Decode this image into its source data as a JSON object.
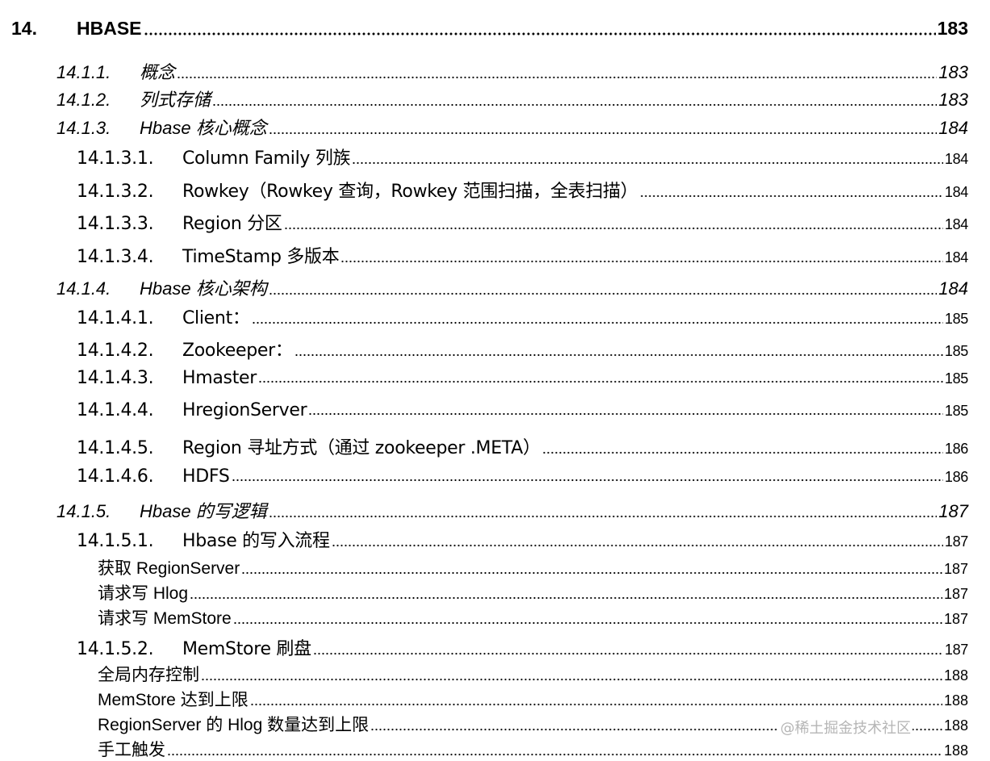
{
  "toc": [
    {
      "level": 1,
      "num": "14.",
      "title": "HBASE",
      "page": "183"
    },
    {
      "level": 2,
      "num": "14.1.1.",
      "title": "概念",
      "page": "183"
    },
    {
      "level": 2,
      "num": "14.1.2.",
      "title": "列式存储",
      "page": "183"
    },
    {
      "level": 2,
      "num": "14.1.3.",
      "title": "Hbase 核心概念",
      "page": "184"
    },
    {
      "level": 3,
      "num": "14.1.3.1.",
      "title": "Column Family 列族",
      "page": "184"
    },
    {
      "level": 3,
      "num": "14.1.3.2.",
      "title": "Rowkey（Rowkey 查询，Rowkey 范围扫描，全表扫描）",
      "page": "184"
    },
    {
      "level": 3,
      "num": "14.1.3.3.",
      "title": "Region 分区",
      "page": "184"
    },
    {
      "level": 3,
      "num": "14.1.3.4.",
      "title": "TimeStamp 多版本",
      "page": "184"
    },
    {
      "level": 2,
      "num": "14.1.4.",
      "title": "Hbase 核心架构",
      "page": "184"
    },
    {
      "level": 3,
      "num": "14.1.4.1.",
      "title": "Client：",
      "page": "185"
    },
    {
      "level": 3,
      "num": "14.1.4.2.",
      "title": "Zookeeper：",
      "page": "185"
    },
    {
      "level": 3,
      "num": "14.1.4.3.",
      "title": "Hmaster",
      "page": "185"
    },
    {
      "level": 3,
      "num": "14.1.4.4.",
      "title": "HregionServer",
      "page": "185"
    },
    {
      "level": 3,
      "num": "14.1.4.5.",
      "title": "Region 寻址方式（通过 zookeeper .META）",
      "page": "186"
    },
    {
      "level": 3,
      "num": "14.1.4.6.",
      "title": "HDFS",
      "page": "186"
    },
    {
      "level": 2,
      "num": "14.1.5.",
      "title": "Hbase 的写逻辑",
      "page": "187"
    },
    {
      "level": 3,
      "num": "14.1.5.1.",
      "title": "Hbase 的写入流程",
      "page": "187"
    },
    {
      "level": 4,
      "num": "",
      "title": "获取 RegionServer",
      "page": "187"
    },
    {
      "level": 4,
      "num": "",
      "title": "请求写 Hlog",
      "page": "187"
    },
    {
      "level": 4,
      "num": "",
      "title": "请求写 MemStore",
      "page": "187"
    },
    {
      "level": 3,
      "num": "14.1.5.2.",
      "title": "MemStore 刷盘",
      "page": "187"
    },
    {
      "level": 4,
      "num": "",
      "title": "全局内存控制",
      "page": "188"
    },
    {
      "level": 4,
      "num": "",
      "title": "MemStore 达到上限",
      "page": "188"
    },
    {
      "level": 4,
      "num": "",
      "title": "RegionServer 的 Hlog 数量达到上限",
      "page": "188"
    },
    {
      "level": 4,
      "num": "",
      "title": "手工触发",
      "page": "188"
    }
  ],
  "watermark": "@稀土掘金技术社区"
}
